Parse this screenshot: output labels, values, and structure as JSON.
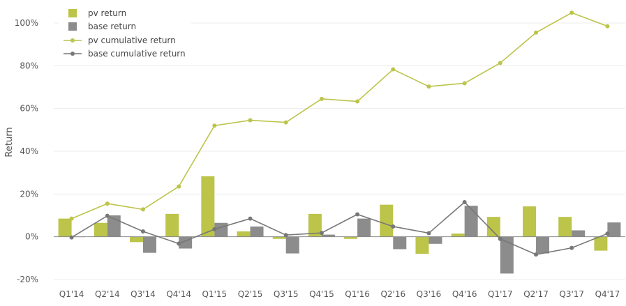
{
  "chart_data": {
    "type": "bar",
    "title": "",
    "xlabel": "",
    "ylabel": "Return",
    "ylim": [
      -20,
      100
    ],
    "yticks": [
      -20,
      0,
      20,
      40,
      60,
      80,
      100
    ],
    "ytick_labels": [
      "-20%",
      "0%",
      "20%",
      "40%",
      "60%",
      "80%",
      "100%"
    ],
    "grid": true,
    "legend_position": "top-left",
    "categories": [
      "Q1'14",
      "Q2'14",
      "Q3'14",
      "Q4'14",
      "Q1'15",
      "Q2'15",
      "Q3'15",
      "Q4'15",
      "Q1'16",
      "Q2'16",
      "Q3'16",
      "Q4'16",
      "Q1'17",
      "Q2'17",
      "Q3'17",
      "Q4'17"
    ],
    "series": [
      {
        "name": "pv return",
        "kind": "bar",
        "color": "#bcc44a",
        "values": [
          8.5,
          6.5,
          -2.5,
          10.7,
          28.3,
          2.5,
          -1.0,
          10.7,
          -1.0,
          15.0,
          -8.0,
          1.5,
          9.3,
          14.2,
          9.3,
          -6.5
        ]
      },
      {
        "name": "base return",
        "kind": "bar",
        "color": "#8c8c8c",
        "values": [
          0.0,
          10.0,
          -7.5,
          -5.5,
          6.5,
          4.8,
          -7.8,
          1.0,
          8.5,
          -5.8,
          -3.3,
          14.5,
          -17.2,
          -7.8,
          3.0,
          6.7
        ]
      },
      {
        "name": "pv cumulative return",
        "kind": "line",
        "color": "#bcc44a",
        "values": [
          8.5,
          15.5,
          12.8,
          23.5,
          52.0,
          54.5,
          53.5,
          64.5,
          63.3,
          78.3,
          70.3,
          71.8,
          81.3,
          95.5,
          104.8,
          98.5
        ]
      },
      {
        "name": "base cumulative return",
        "kind": "line",
        "color": "#777777",
        "values": [
          -0.3,
          9.8,
          2.5,
          -3.2,
          3.5,
          8.5,
          0.8,
          1.8,
          10.5,
          4.8,
          1.7,
          16.2,
          -1.0,
          -8.3,
          -5.2,
          1.5
        ]
      }
    ]
  }
}
